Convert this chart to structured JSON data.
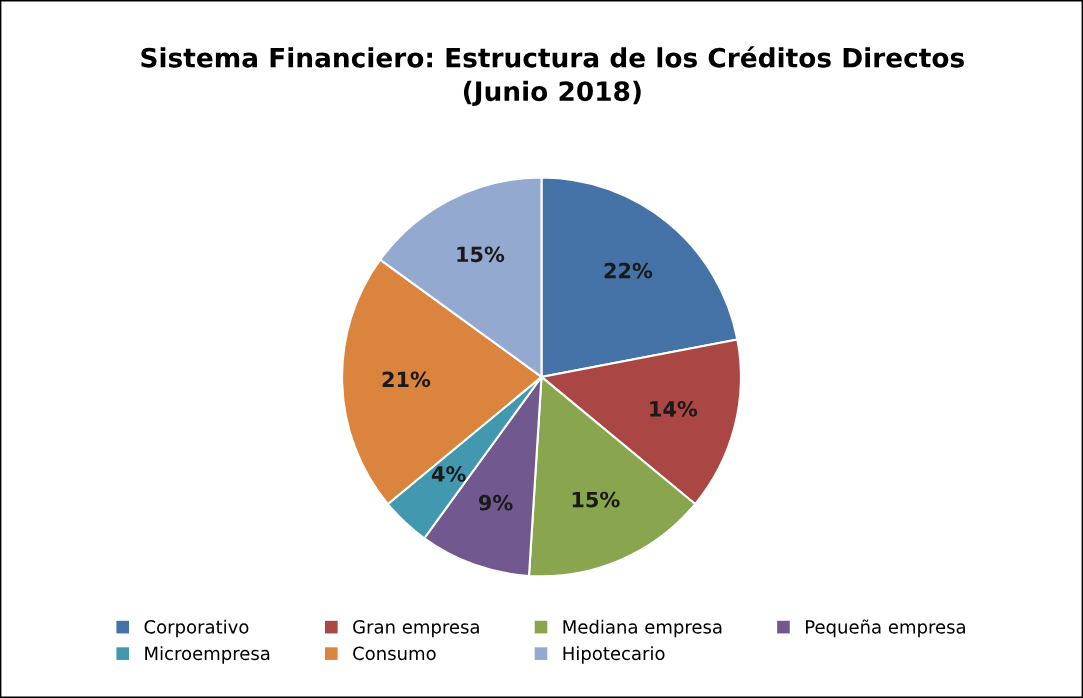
{
  "chart_data": {
    "type": "pie",
    "title": "Sistema Financiero: Estructura de los Créditos Directos\n(Junio 2018)",
    "categories": [
      "Corporativo",
      "Gran empresa",
      "Mediana empresa",
      "Pequeña empresa",
      "Microempresa",
      "Consumo",
      "Hipotecario"
    ],
    "values": [
      22,
      14,
      15,
      9,
      4,
      21,
      15
    ],
    "colors": [
      "#4572a7",
      "#aa4643",
      "#89a54e",
      "#71588f",
      "#4198af",
      "#db843d",
      "#93a9cf"
    ],
    "value_labels": [
      "22%",
      "14%",
      "15%",
      "9%",
      "4%",
      "21%",
      "15%"
    ],
    "legend": "bottom"
  }
}
